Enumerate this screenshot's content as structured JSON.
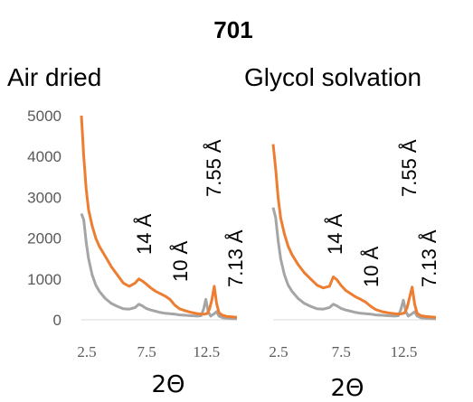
{
  "title": "701",
  "colors": {
    "air_line": "#ED7D31",
    "glycol_line": "#A5A5A5",
    "axis": "#D9D9D9"
  },
  "chart_data": [
    {
      "type": "line",
      "title": "Air dried",
      "xlabel": "2Θ",
      "ylabel": "",
      "xlim": [
        2.5,
        15.5
      ],
      "ylim": [
        0,
        5000
      ],
      "yticks": [
        0,
        1000,
        2000,
        3000,
        4000,
        5000
      ],
      "xticks": [
        2.5,
        7.5,
        12.5
      ],
      "annotations": [
        {
          "text": "14 Å",
          "x": 7.5
        },
        {
          "text": "10 Å",
          "x": 10.2
        },
        {
          "text": "7.55 Å",
          "x": 12.6
        },
        {
          "text": "7.13 Å",
          "x": 13.5
        }
      ],
      "series": [
        {
          "x": [
            2.5,
            2.7,
            2.9,
            3.1,
            3.4,
            3.7,
            4.0,
            4.5,
            5.0,
            5.5,
            6.0,
            6.5,
            7.0,
            7.3,
            7.6,
            7.9,
            8.3,
            8.7,
            9.1,
            9.5,
            9.9,
            10.3,
            10.7,
            11.2,
            11.7,
            12.2,
            12.6,
            12.8,
            13.0,
            13.2,
            13.4,
            13.6,
            13.8,
            14.0,
            14.3,
            14.7,
            15.1,
            15.5
          ],
          "values": [
            5000,
            4000,
            3200,
            2700,
            2300,
            2000,
            1800,
            1550,
            1300,
            1100,
            900,
            820,
            900,
            1000,
            950,
            880,
            780,
            700,
            640,
            580,
            500,
            360,
            270,
            220,
            180,
            150,
            140,
            140,
            150,
            260,
            480,
            820,
            400,
            170,
            110,
            80,
            70,
            60
          ]
        },
        {
          "x": [
            2.5,
            2.7,
            2.9,
            3.1,
            3.4,
            3.7,
            4.0,
            4.5,
            5.0,
            5.5,
            6.0,
            6.5,
            7.0,
            7.3,
            7.6,
            7.9,
            8.3,
            8.7,
            9.1,
            9.5,
            9.9,
            10.3,
            10.7,
            11.2,
            11.7,
            12.2,
            12.5,
            12.7,
            12.9,
            13.1,
            13.3,
            13.6,
            13.8,
            14.0,
            14.3,
            14.7,
            15.1,
            15.5
          ],
          "values": [
            2600,
            2450,
            1900,
            1500,
            1100,
            850,
            700,
            520,
            400,
            330,
            270,
            260,
            300,
            380,
            340,
            280,
            240,
            210,
            180,
            160,
            150,
            140,
            120,
            110,
            100,
            90,
            100,
            250,
            500,
            200,
            90,
            150,
            200,
            90,
            50,
            40,
            30,
            25
          ]
        }
      ]
    },
    {
      "type": "line",
      "title": "Glycol solvation",
      "xlabel": "2Θ",
      "ylabel": "",
      "xlim": [
        2.5,
        15.5
      ],
      "ylim": [
        0,
        5000
      ],
      "xticks": [
        2.5,
        7.5,
        12.5
      ],
      "annotations": [
        {
          "text": "14 Å",
          "x": 7.6
        },
        {
          "text": "10 Å",
          "x": 10.3
        },
        {
          "text": "7.55 Å",
          "x": 13.0
        },
        {
          "text": "7.13 Å",
          "x": 13.0
        }
      ],
      "series": [
        {
          "x": [
            2.5,
            2.7,
            2.9,
            3.1,
            3.4,
            3.7,
            4.0,
            4.5,
            5.0,
            5.5,
            6.0,
            6.5,
            7.0,
            7.3,
            7.6,
            7.9,
            8.3,
            8.7,
            9.1,
            9.5,
            9.9,
            10.3,
            10.7,
            11.2,
            11.7,
            12.2,
            12.6,
            12.8,
            13.0,
            13.2,
            13.4,
            13.6,
            13.8,
            14.0,
            14.3,
            14.7,
            15.1,
            15.5
          ],
          "values": [
            4300,
            3700,
            3000,
            2500,
            2100,
            1800,
            1600,
            1350,
            1150,
            1000,
            850,
            780,
            820,
            1050,
            980,
            850,
            720,
            640,
            560,
            500,
            430,
            330,
            250,
            200,
            170,
            150,
            140,
            150,
            170,
            300,
            550,
            800,
            380,
            160,
            100,
            80,
            70,
            60
          ]
        },
        {
          "x": [
            2.5,
            2.7,
            2.9,
            3.1,
            3.4,
            3.7,
            4.0,
            4.5,
            5.0,
            5.5,
            6.0,
            6.5,
            7.0,
            7.3,
            7.6,
            7.9,
            8.3,
            8.7,
            9.1,
            9.5,
            9.9,
            10.3,
            10.7,
            11.2,
            11.7,
            12.2,
            12.5,
            12.7,
            12.9,
            13.1,
            13.3,
            13.6,
            13.8,
            14.0,
            14.3,
            14.7,
            15.1,
            15.5
          ],
          "values": [
            2750,
            2500,
            1950,
            1500,
            1100,
            850,
            700,
            520,
            400,
            330,
            270,
            260,
            300,
            380,
            340,
            280,
            240,
            210,
            180,
            160,
            150,
            140,
            120,
            110,
            100,
            90,
            100,
            250,
            480,
            200,
            90,
            150,
            200,
            90,
            50,
            40,
            30,
            25
          ]
        }
      ]
    }
  ]
}
